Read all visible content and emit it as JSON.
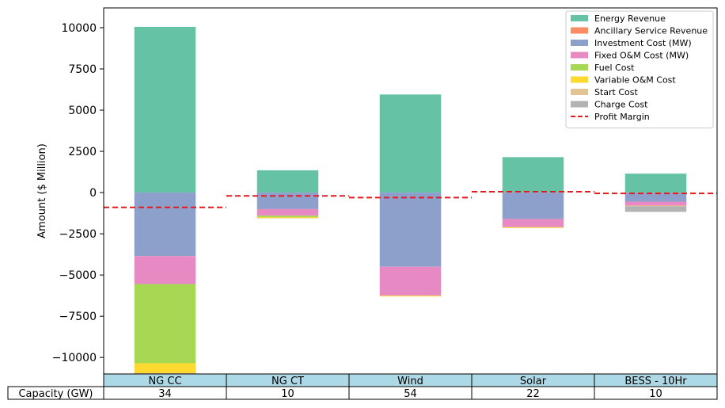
{
  "chart_data": {
    "type": "bar",
    "stacked": true,
    "title": "",
    "xlabel": "",
    "ylabel": "Amount ($ Million)",
    "ylim": [
      -11000,
      11200
    ],
    "yticks": [
      -10000,
      -7500,
      -5000,
      -2500,
      0,
      2500,
      5000,
      7500,
      10000
    ],
    "ytick_labels": [
      "−10000",
      "−7500",
      "−5000",
      "−2500",
      "0",
      "2500",
      "5000",
      "7500",
      "10000"
    ],
    "grid": false,
    "legend_position": "top-right",
    "categories": [
      "NG CC",
      "NG CT",
      "Wind",
      "Solar",
      "BESS - 10Hr"
    ],
    "series": [
      {
        "name": "Energy Revenue",
        "color": "#66c2a5",
        "values": [
          10050,
          1350,
          5950,
          2150,
          1150
        ]
      },
      {
        "name": "Ancillary Service Revenue",
        "color": "#fc8d62",
        "values": [
          0,
          0,
          0,
          0,
          0
        ]
      },
      {
        "name": "Investment Cost (MW)",
        "color": "#8da0cb",
        "values": [
          -3850,
          -1000,
          -4500,
          -1600,
          -550
        ]
      },
      {
        "name": "Fixed O&M Cost (MW)",
        "color": "#e78ac3",
        "values": [
          -1700,
          -400,
          -1750,
          -500,
          -250
        ]
      },
      {
        "name": "Fuel Cost",
        "color": "#a6d854",
        "values": [
          -4800,
          -100,
          0,
          0,
          0
        ]
      },
      {
        "name": "Variable O&M Cost",
        "color": "#ffd92f",
        "values": [
          -600,
          -50,
          -50,
          -50,
          -20
        ]
      },
      {
        "name": "Start Cost",
        "color": "#e5c494",
        "values": [
          -80,
          -20,
          0,
          0,
          0
        ]
      },
      {
        "name": "Charge Cost",
        "color": "#b3b3b3",
        "values": [
          0,
          0,
          0,
          0,
          -350
        ]
      }
    ],
    "profit_margin": {
      "name": "Profit Margin",
      "color": "#e41a1c",
      "values": [
        -900,
        -200,
        -300,
        50,
        -50
      ]
    },
    "table": {
      "header": [
        "NG CC",
        "NG CT",
        "Wind",
        "Solar",
        "BESS - 10Hr"
      ],
      "row_label": "Capacity (GW)",
      "row_values": [
        "34",
        "10",
        "54",
        "22",
        "10"
      ],
      "header_color": "#add8e6"
    }
  }
}
